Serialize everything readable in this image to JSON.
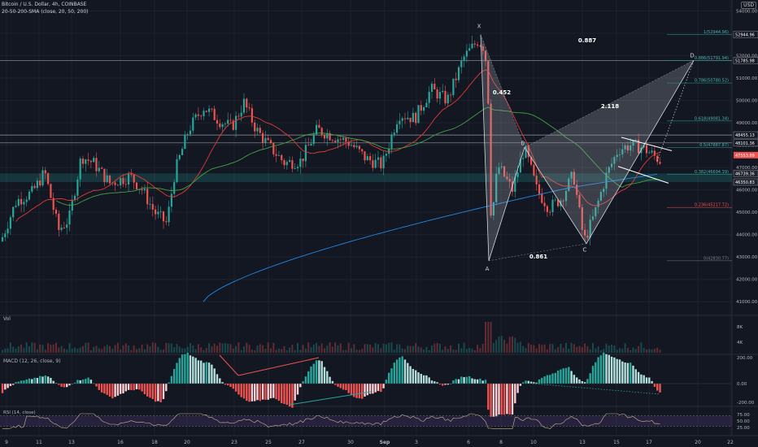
{
  "header": {
    "symbol_line": "Bitcoin / U.S. Dollar, 4h, COINBASE",
    "sma_line": "20-50-200-SMA (close, 20, 50, 200)",
    "currency": "USD"
  },
  "chart_data": [
    {
      "type": "candlestick",
      "title": "Bitcoin / U.S. Dollar, 4h, COINBASE",
      "x_tick_labels": [
        "9",
        "11",
        "13",
        "16",
        "18",
        "20",
        "23",
        "25",
        "27",
        "30",
        "Sep",
        "3",
        "6",
        "8",
        "10",
        "13",
        "15",
        "17",
        "20",
        "22"
      ],
      "y_tick_labels": [
        "54000.00",
        "53000.00",
        "52000.00",
        "51000.00",
        "50000.00",
        "49000.00",
        "48000.00",
        "47000.00",
        "46000.00",
        "45000.00",
        "44000.00",
        "43000.00",
        "42000.00",
        "41000.00"
      ],
      "price_scale_labels": [
        "52944.96",
        "51785.98",
        "48455.13",
        "48101.36",
        "47553.89",
        "46739.36",
        "46350.83"
      ],
      "ylim": [
        40500,
        54200
      ],
      "sma_series": [
        {
          "name": "SMA 20",
          "color": "#e53935"
        },
        {
          "name": "SMA 50",
          "color": "#43a047"
        },
        {
          "name": "SMA 200",
          "color": "#1e88e5"
        }
      ],
      "harmonic_pattern": {
        "points": [
          {
            "label": "X",
            "price": 52944
          },
          {
            "label": "A",
            "price": 42830
          },
          {
            "label": "B",
            "price": 47900
          },
          {
            "label": "C",
            "price": 43600
          },
          {
            "label": "D",
            "price": 51791
          }
        ],
        "ratios": [
          "0.452",
          "0.861",
          "2.118",
          "0.887"
        ]
      },
      "fibonacci_levels": [
        {
          "label": "1(52944.96)",
          "price": 52944.96
        },
        {
          "label": "0.886(51791.94)",
          "price": 51791.94
        },
        {
          "label": "0.786(50780.52)",
          "price": 50780.52
        },
        {
          "label": "0.618(49081.34)",
          "price": 49081.34
        },
        {
          "label": "0.5(47887.87)",
          "price": 47887.87
        },
        {
          "label": "0.382(46694.39)",
          "price": 46694.39
        },
        {
          "label": "0.236(45217.72)",
          "price": 45217.72
        },
        {
          "label": "0(42830.77)",
          "price": 42830.77
        }
      ],
      "horizontal_levels": [
        51785.98,
        48455.13,
        48101.36
      ],
      "support_zone": [
        46350,
        46739
      ]
    },
    {
      "type": "bar",
      "title": "Vol",
      "y_tick_labels": [
        "8K",
        "4K"
      ]
    },
    {
      "type": "histogram",
      "title": "MACD (12, 26, close, 9)",
      "y_tick_labels": [
        "200.00",
        "0.00",
        "-200.00"
      ],
      "ylim": [
        -420,
        420
      ]
    },
    {
      "type": "line",
      "title": "RSI (14, close)",
      "y_tick_labels": [
        "75.00",
        "50.00",
        "25.00"
      ],
      "ylim": [
        0,
        100
      ],
      "bands": [
        30,
        70
      ]
    }
  ]
}
